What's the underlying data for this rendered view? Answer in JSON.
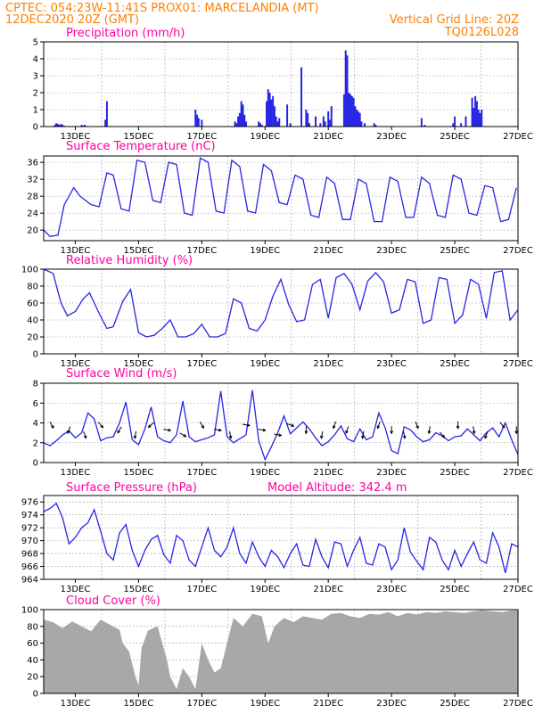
{
  "header": {
    "line1_left": "CPTEC:   054:23W-11:41S   PROX01: MARCELANDIA (MT)",
    "line2_left": "12DEC2020 20Z (GMT)",
    "line2_right": "Vertical Grid Line: 20Z",
    "line3_right": "TQ0126L028"
  },
  "colors": {
    "header": "#ff7f00",
    "panel_title": "#ff00a0",
    "series": "#2626e6",
    "cloud": "#a8a8a8",
    "arrows": "#000000"
  },
  "x_axis": {
    "tick_labels": [
      "13DEC",
      "15DEC",
      "17DEC",
      "19DEC",
      "21DEC",
      "23DEC",
      "25DEC",
      "27DEC"
    ],
    "tick_days": [
      13,
      15,
      17,
      19,
      21,
      23,
      25,
      27
    ],
    "range_days": [
      12.0,
      27.0
    ]
  },
  "chart_data": [
    {
      "id": "precip",
      "type": "bar",
      "title": "Precipitation (mm/h)",
      "xlabel": "",
      "ylabel": "",
      "ylim": [
        0,
        5
      ],
      "yticks": [
        0,
        1,
        2,
        3,
        4,
        5
      ],
      "grid": true,
      "x": [
        12.35,
        12.4,
        12.45,
        12.5,
        12.55,
        12.6,
        12.65,
        13.2,
        13.25,
        13.3,
        13.95,
        14.0,
        16.8,
        16.85,
        16.9,
        17.0,
        18.05,
        18.1,
        18.15,
        18.2,
        18.25,
        18.3,
        18.35,
        18.4,
        18.8,
        18.85,
        18.9,
        19.05,
        19.1,
        19.15,
        19.2,
        19.25,
        19.3,
        19.35,
        19.4,
        19.45,
        19.7,
        19.8,
        20.15,
        20.3,
        20.35,
        20.4,
        20.6,
        20.75,
        20.85,
        20.9,
        21.0,
        21.05,
        21.1,
        21.5,
        21.55,
        21.6,
        21.65,
        21.7,
        21.75,
        21.8,
        21.85,
        21.9,
        21.95,
        22.0,
        22.05,
        22.15,
        22.45,
        22.5,
        23.95,
        24.05,
        24.95,
        25.0,
        25.2,
        25.35,
        25.55,
        25.6,
        25.65,
        25.7,
        25.75,
        25.8,
        25.85
      ],
      "values": [
        0.1,
        0.2,
        0.15,
        0.1,
        0.15,
        0.1,
        0.05,
        0.1,
        0.05,
        0.1,
        0.4,
        1.5,
        1.0,
        0.7,
        0.5,
        0.4,
        0.3,
        0.2,
        0.6,
        0.8,
        1.5,
        1.3,
        0.7,
        0.3,
        0.3,
        0.2,
        0.1,
        1.5,
        2.2,
        2.0,
        1.6,
        1.8,
        1.2,
        0.6,
        0.3,
        0.5,
        1.3,
        0.2,
        3.5,
        1.0,
        0.8,
        0.2,
        0.6,
        0.2,
        0.6,
        0.3,
        0.9,
        0.4,
        1.2,
        1.9,
        4.5,
        4.2,
        2.0,
        1.9,
        1.8,
        1.7,
        1.2,
        1.0,
        0.9,
        0.8,
        0.3,
        0.2,
        0.2,
        0.1,
        0.5,
        0.1,
        0.2,
        0.6,
        0.2,
        0.6,
        1.7,
        1.1,
        1.8,
        1.5,
        1.0,
        0.8,
        1.0
      ]
    },
    {
      "id": "temp",
      "type": "line",
      "title": "Surface Temperature (nC)",
      "xlabel": "",
      "ylabel": "",
      "ylim": [
        17.5,
        37.5
      ],
      "yticks": [
        20,
        24,
        28,
        32,
        36
      ],
      "grid": true,
      "x": [
        12.0,
        12.2,
        12.45,
        12.65,
        12.95,
        13.15,
        13.5,
        13.75,
        14.0,
        14.2,
        14.45,
        14.7,
        14.95,
        15.2,
        15.45,
        15.7,
        15.95,
        16.2,
        16.45,
        16.7,
        16.95,
        17.2,
        17.45,
        17.7,
        17.95,
        18.2,
        18.45,
        18.7,
        18.95,
        19.2,
        19.45,
        19.7,
        19.95,
        20.2,
        20.45,
        20.7,
        20.95,
        21.2,
        21.45,
        21.7,
        21.95,
        22.2,
        22.45,
        22.7,
        22.95,
        23.2,
        23.45,
        23.7,
        23.95,
        24.2,
        24.45,
        24.7,
        24.95,
        25.2,
        25.45,
        25.7,
        25.95,
        26.2,
        26.45,
        26.7,
        26.95
      ],
      "values": [
        20.0,
        18.5,
        18.8,
        26.0,
        30.0,
        28.0,
        26.0,
        25.5,
        33.5,
        33.0,
        25.0,
        24.5,
        36.5,
        36.0,
        27.0,
        26.5,
        36.0,
        35.5,
        24.0,
        23.5,
        37.0,
        36.0,
        24.5,
        24.0,
        36.5,
        35.0,
        24.5,
        24.0,
        35.5,
        34.0,
        26.5,
        26.0,
        33.0,
        32.0,
        23.5,
        23.0,
        32.5,
        31.0,
        22.5,
        22.5,
        32.0,
        31.0,
        22.0,
        22.0,
        32.5,
        31.5,
        23.0,
        23.0,
        32.5,
        31.0,
        23.5,
        23.0,
        33.0,
        32.0,
        24.0,
        23.5,
        30.5,
        30.0,
        22.0,
        22.5,
        30.0
      ]
    },
    {
      "id": "rh",
      "type": "line",
      "title": "Relative Humidity (%)",
      "xlabel": "",
      "ylabel": "",
      "ylim": [
        0,
        100
      ],
      "yticks": [
        0,
        20,
        40,
        60,
        80,
        100
      ],
      "grid": true,
      "x": [
        12.0,
        12.3,
        12.55,
        12.75,
        13.0,
        13.25,
        13.45,
        13.75,
        14.0,
        14.2,
        14.5,
        14.75,
        15.0,
        15.25,
        15.5,
        15.75,
        16.0,
        16.25,
        16.5,
        16.75,
        17.0,
        17.25,
        17.5,
        17.75,
        18.0,
        18.25,
        18.5,
        18.75,
        19.0,
        19.25,
        19.5,
        19.75,
        20.0,
        20.25,
        20.5,
        20.75,
        21.0,
        21.25,
        21.5,
        21.75,
        22.0,
        22.25,
        22.5,
        22.75,
        23.0,
        23.25,
        23.5,
        23.75,
        24.0,
        24.25,
        24.5,
        24.75,
        25.0,
        25.25,
        25.5,
        25.75,
        26.0,
        26.25,
        26.5,
        26.75,
        27.0
      ],
      "values": [
        100,
        95,
        60,
        45,
        50,
        65,
        72,
        48,
        30,
        32,
        62,
        76,
        25,
        20,
        22,
        30,
        40,
        20,
        20,
        24,
        35,
        20,
        20,
        24,
        65,
        60,
        30,
        27,
        40,
        68,
        88,
        58,
        38,
        40,
        82,
        88,
        42,
        90,
        95,
        82,
        52,
        86,
        96,
        85,
        48,
        52,
        88,
        85,
        36,
        40,
        90,
        88,
        36,
        46,
        88,
        82,
        42,
        96,
        98,
        40,
        52
      ]
    },
    {
      "id": "wind",
      "type": "line",
      "title": "Surface Wind (m/s)",
      "xlabel": "",
      "ylabel": "",
      "ylim": [
        0,
        8
      ],
      "yticks": [
        0,
        2,
        4,
        6,
        8
      ],
      "grid": true,
      "x": [
        12.0,
        12.2,
        12.4,
        12.6,
        12.8,
        13.0,
        13.2,
        13.4,
        13.6,
        13.8,
        14.0,
        14.2,
        14.4,
        14.6,
        14.8,
        15.0,
        15.2,
        15.4,
        15.6,
        15.8,
        16.0,
        16.2,
        16.4,
        16.6,
        16.8,
        17.0,
        17.2,
        17.4,
        17.6,
        17.8,
        18.0,
        18.2,
        18.4,
        18.6,
        18.8,
        19.0,
        19.2,
        19.4,
        19.6,
        19.8,
        20.0,
        20.2,
        20.4,
        20.6,
        20.8,
        21.0,
        21.2,
        21.4,
        21.6,
        21.8,
        22.0,
        22.2,
        22.4,
        22.6,
        22.8,
        23.0,
        23.2,
        23.4,
        23.6,
        23.8,
        24.0,
        24.2,
        24.4,
        24.6,
        24.8,
        25.0,
        25.2,
        25.4,
        25.6,
        25.8,
        26.0,
        26.2,
        26.4,
        26.6,
        26.8,
        27.0
      ],
      "values": [
        2.0,
        1.7,
        2.2,
        2.8,
        3.2,
        2.5,
        3.0,
        5.0,
        4.4,
        2.2,
        2.5,
        2.6,
        4.0,
        6.1,
        2.3,
        1.8,
        3.4,
        5.6,
        2.6,
        2.2,
        2.0,
        2.8,
        6.2,
        2.6,
        2.1,
        2.3,
        2.5,
        2.8,
        7.2,
        2.6,
        2.0,
        2.4,
        2.8,
        7.3,
        2.2,
        0.3,
        1.6,
        3.0,
        4.7,
        2.9,
        3.5,
        4.1,
        3.4,
        2.5,
        1.7,
        2.1,
        2.8,
        3.7,
        2.4,
        2.1,
        3.4,
        2.3,
        2.6,
        5.0,
        3.5,
        1.2,
        0.9,
        3.6,
        3.3,
        2.6,
        2.1,
        2.3,
        3.0,
        2.7,
        2.2,
        2.6,
        2.7,
        3.4,
        2.8,
        2.2,
        3.0,
        3.5,
        2.6,
        4.0,
        2.3,
        0.8
      ]
    },
    {
      "id": "wind_dir",
      "type": "scatter",
      "title": "",
      "note": "wind direction arrows at sampled times",
      "x": [
        12.25,
        12.8,
        13.3,
        13.8,
        14.4,
        14.9,
        15.4,
        15.9,
        16.4,
        17.0,
        17.5,
        17.9,
        18.4,
        18.9,
        19.4,
        19.8,
        20.3,
        20.8,
        21.2,
        21.6,
        22.1,
        22.6,
        23.0,
        23.4,
        23.8,
        24.2,
        24.6,
        25.1,
        25.6,
        26.0,
        26.5,
        26.95
      ],
      "angles_deg": [
        150,
        200,
        160,
        140,
        210,
        190,
        230,
        100,
        120,
        150,
        100,
        170,
        100,
        100,
        100,
        110,
        180,
        190,
        200,
        200,
        190,
        200,
        180,
        170,
        160,
        190,
        140,
        180,
        170,
        200,
        140,
        180
      ]
    },
    {
      "id": "pressure",
      "type": "line",
      "title": "Surface Pressure (hPa)",
      "annotation": "Model Altitude: 342.4  m",
      "xlabel": "",
      "ylabel": "",
      "ylim": [
        964,
        977
      ],
      "yticks": [
        964,
        966,
        968,
        970,
        972,
        974,
        976
      ],
      "grid": true,
      "x": [
        12.0,
        12.2,
        12.4,
        12.6,
        12.8,
        13.0,
        13.2,
        13.4,
        13.6,
        13.8,
        14.0,
        14.2,
        14.4,
        14.6,
        14.8,
        15.0,
        15.2,
        15.4,
        15.6,
        15.8,
        16.0,
        16.2,
        16.4,
        16.6,
        16.8,
        17.0,
        17.2,
        17.4,
        17.6,
        17.8,
        18.0,
        18.2,
        18.4,
        18.6,
        18.8,
        19.0,
        19.2,
        19.4,
        19.6,
        19.8,
        20.0,
        20.2,
        20.4,
        20.6,
        20.8,
        21.0,
        21.2,
        21.4,
        21.6,
        21.8,
        22.0,
        22.2,
        22.4,
        22.6,
        22.8,
        23.0,
        23.2,
        23.4,
        23.6,
        23.8,
        24.0,
        24.2,
        24.4,
        24.6,
        24.8,
        25.0,
        25.2,
        25.4,
        25.6,
        25.8,
        26.0,
        26.2,
        26.4,
        26.6,
        26.8,
        27.0
      ],
      "values": [
        974.5,
        975.0,
        975.8,
        973.5,
        969.5,
        970.5,
        972.0,
        972.8,
        974.8,
        971.5,
        968.0,
        967.0,
        971.2,
        972.5,
        968.5,
        966.0,
        968.5,
        970.2,
        970.8,
        967.8,
        966.5,
        970.8,
        970.0,
        967.0,
        966.0,
        969.0,
        972.0,
        968.5,
        967.5,
        969.0,
        972.0,
        968.0,
        966.5,
        969.8,
        967.5,
        966.0,
        968.5,
        967.5,
        965.8,
        968.0,
        969.5,
        966.2,
        966.0,
        970.2,
        967.5,
        965.8,
        969.8,
        969.5,
        966.0,
        968.5,
        970.5,
        966.5,
        966.2,
        969.5,
        969.0,
        965.5,
        967.0,
        972.0,
        968.2,
        966.8,
        965.5,
        970.5,
        969.8,
        967.0,
        965.5,
        968.5,
        966.0,
        968.0,
        969.8,
        967.0,
        966.5,
        971.2,
        969.0,
        965.0,
        969.5,
        969.0
      ]
    },
    {
      "id": "cloud",
      "type": "area",
      "title": "Cloud Cover (%)",
      "xlabel": "",
      "ylabel": "",
      "ylim": [
        0,
        100
      ],
      "yticks": [
        0,
        20,
        40,
        60,
        80,
        100
      ],
      "grid": true,
      "x": [
        12.0,
        12.3,
        12.6,
        12.9,
        13.2,
        13.5,
        13.8,
        14.1,
        14.4,
        14.5,
        14.7,
        14.9,
        15.0,
        15.1,
        15.3,
        15.6,
        15.9,
        16.0,
        16.2,
        16.4,
        16.6,
        16.8,
        17.0,
        17.2,
        17.4,
        17.6,
        17.8,
        18.0,
        18.3,
        18.6,
        18.9,
        19.1,
        19.3,
        19.6,
        19.9,
        20.2,
        20.5,
        20.8,
        21.1,
        21.4,
        21.7,
        22.0,
        22.3,
        22.6,
        22.9,
        23.2,
        23.5,
        23.8,
        24.1,
        24.4,
        24.7,
        25.0,
        25.3,
        25.6,
        25.9,
        26.2,
        26.5,
        26.8,
        27.0
      ],
      "values": [
        88,
        85,
        78,
        86,
        80,
        74,
        88,
        82,
        76,
        60,
        50,
        20,
        10,
        55,
        75,
        80,
        40,
        20,
        5,
        30,
        20,
        5,
        60,
        40,
        25,
        30,
        60,
        90,
        80,
        95,
        92,
        60,
        80,
        90,
        85,
        92,
        90,
        88,
        95,
        96,
        92,
        90,
        95,
        94,
        97,
        92,
        96,
        94,
        97,
        96,
        98,
        97,
        96,
        98,
        99,
        98,
        97,
        99,
        99
      ]
    }
  ]
}
